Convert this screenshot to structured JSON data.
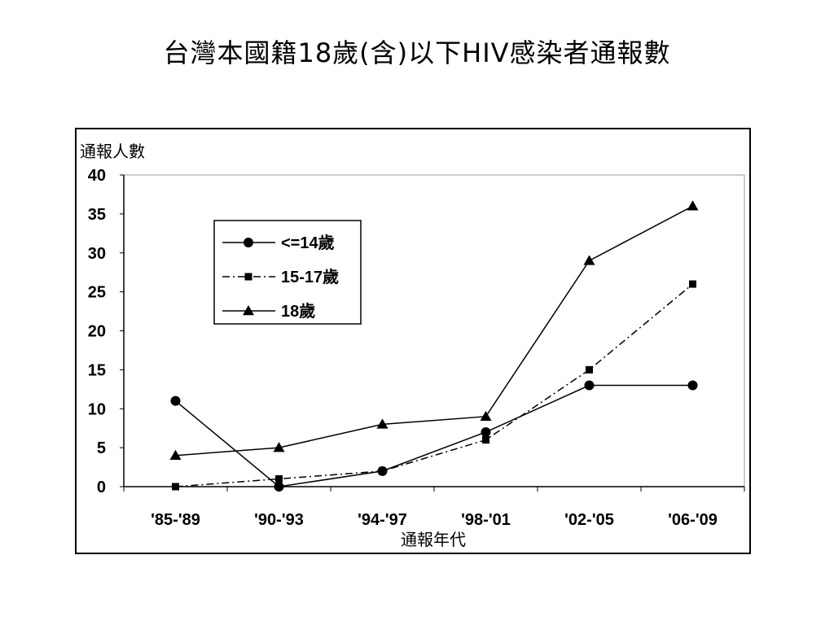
{
  "page": {
    "title": "台灣本國籍18歲(含)以下HIV感染者通報數"
  },
  "chart_data": {
    "type": "line",
    "title": "台灣本國籍18歲(含)以下HIV感染者通報數",
    "xlabel": "通報年代",
    "ylabel": "通報人數",
    "categories": [
      "'85-'89",
      "'90-'93",
      "'94-'97",
      "'98-'01",
      "'02-'05",
      "'06-'09"
    ],
    "ylim": [
      0,
      40
    ],
    "yticks": [
      0,
      5,
      10,
      15,
      20,
      25,
      30,
      35,
      40
    ],
    "grid": false,
    "legend": "top-left",
    "series": [
      {
        "name": "<=14歲",
        "marker": "circle",
        "line": "solid",
        "color": "#000000",
        "values": [
          11,
          0,
          2,
          7,
          13,
          13
        ]
      },
      {
        "name": "15-17歲",
        "marker": "square",
        "line": "dash-dot",
        "color": "#000000",
        "values": [
          0,
          1,
          2,
          6,
          15,
          26
        ]
      },
      {
        "name": "18歲",
        "marker": "triangle",
        "line": "solid",
        "color": "#000000",
        "values": [
          4,
          5,
          8,
          9,
          29,
          36
        ]
      }
    ]
  }
}
